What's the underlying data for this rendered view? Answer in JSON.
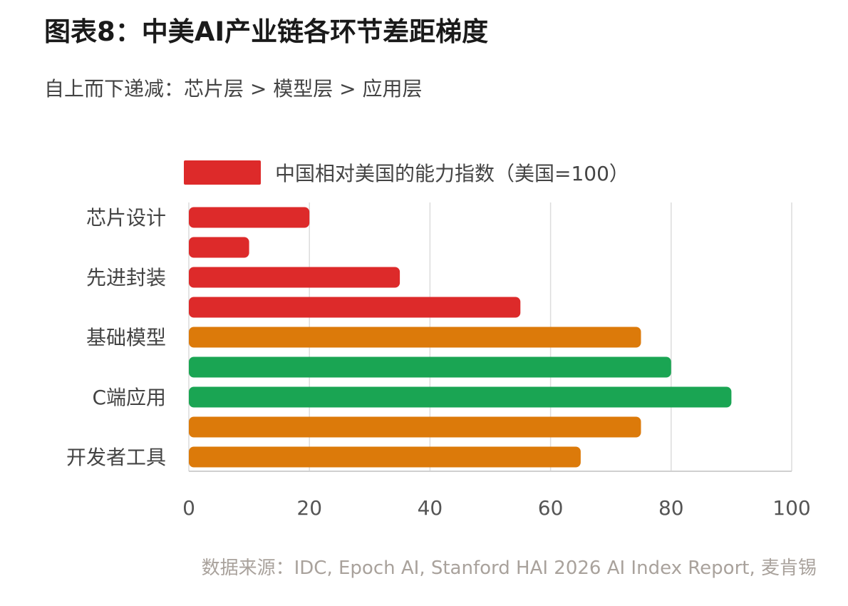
{
  "title": "图表8：中美AI产业链各环节差距梯度",
  "subtitle": "自上而下递减：芯片层 > 模型层 > 应用层",
  "legend": {
    "label": "中国相对美国的能力指数（美国=100）",
    "color": "#dd2a2a"
  },
  "source": "数据来源：IDC, Epoch AI, Stanford HAI 2026 AI Index Report, 麦肯锡",
  "chart_data": {
    "type": "bar",
    "orientation": "horizontal",
    "categories": [
      "芯片设计",
      "",
      "先进封装",
      "",
      "基础模型",
      "",
      "C端应用",
      "",
      "开发者工具"
    ],
    "values": [
      20,
      10,
      35,
      55,
      75,
      80,
      90,
      75,
      65
    ],
    "bar_colors": [
      "#dd2a2a",
      "#dd2a2a",
      "#dd2a2a",
      "#dd2a2a",
      "#dc7a0a",
      "#1aa553",
      "#1aa553",
      "#dc7a0a",
      "#dc7a0a"
    ],
    "xlim": [
      0,
      100
    ],
    "xticks": [
      0,
      20,
      40,
      60,
      80,
      100
    ],
    "grid": true,
    "legend_position": "top"
  }
}
